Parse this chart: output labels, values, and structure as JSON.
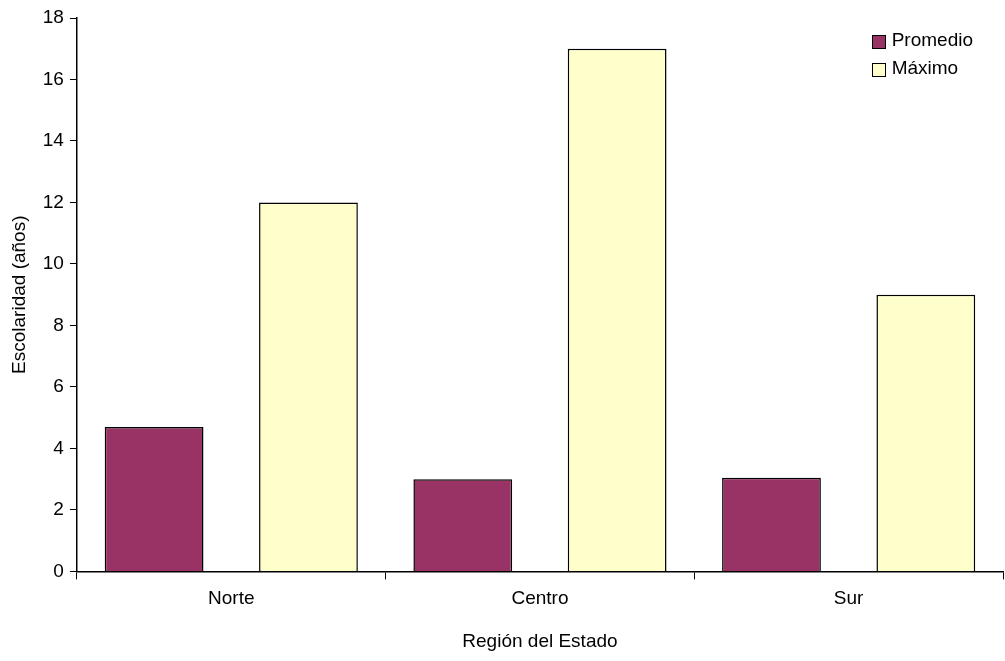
{
  "chart_data": {
    "type": "bar",
    "xlabel": "Región del Estado",
    "ylabel": "Escolaridad (años)",
    "categories": [
      "Norte",
      "Centro",
      "Sur"
    ],
    "series": [
      {
        "name": "Promedio",
        "color": "#993366",
        "values": [
          4.7,
          3.0,
          3.05
        ]
      },
      {
        "name": "Máximo",
        "color": "#ffffcc",
        "values": [
          12,
          17,
          9
        ]
      }
    ],
    "ylim": [
      0,
      18
    ],
    "yticks": [
      0,
      2,
      4,
      6,
      8,
      10,
      12,
      14,
      16,
      18
    ],
    "grid": false,
    "legend": "top right"
  }
}
